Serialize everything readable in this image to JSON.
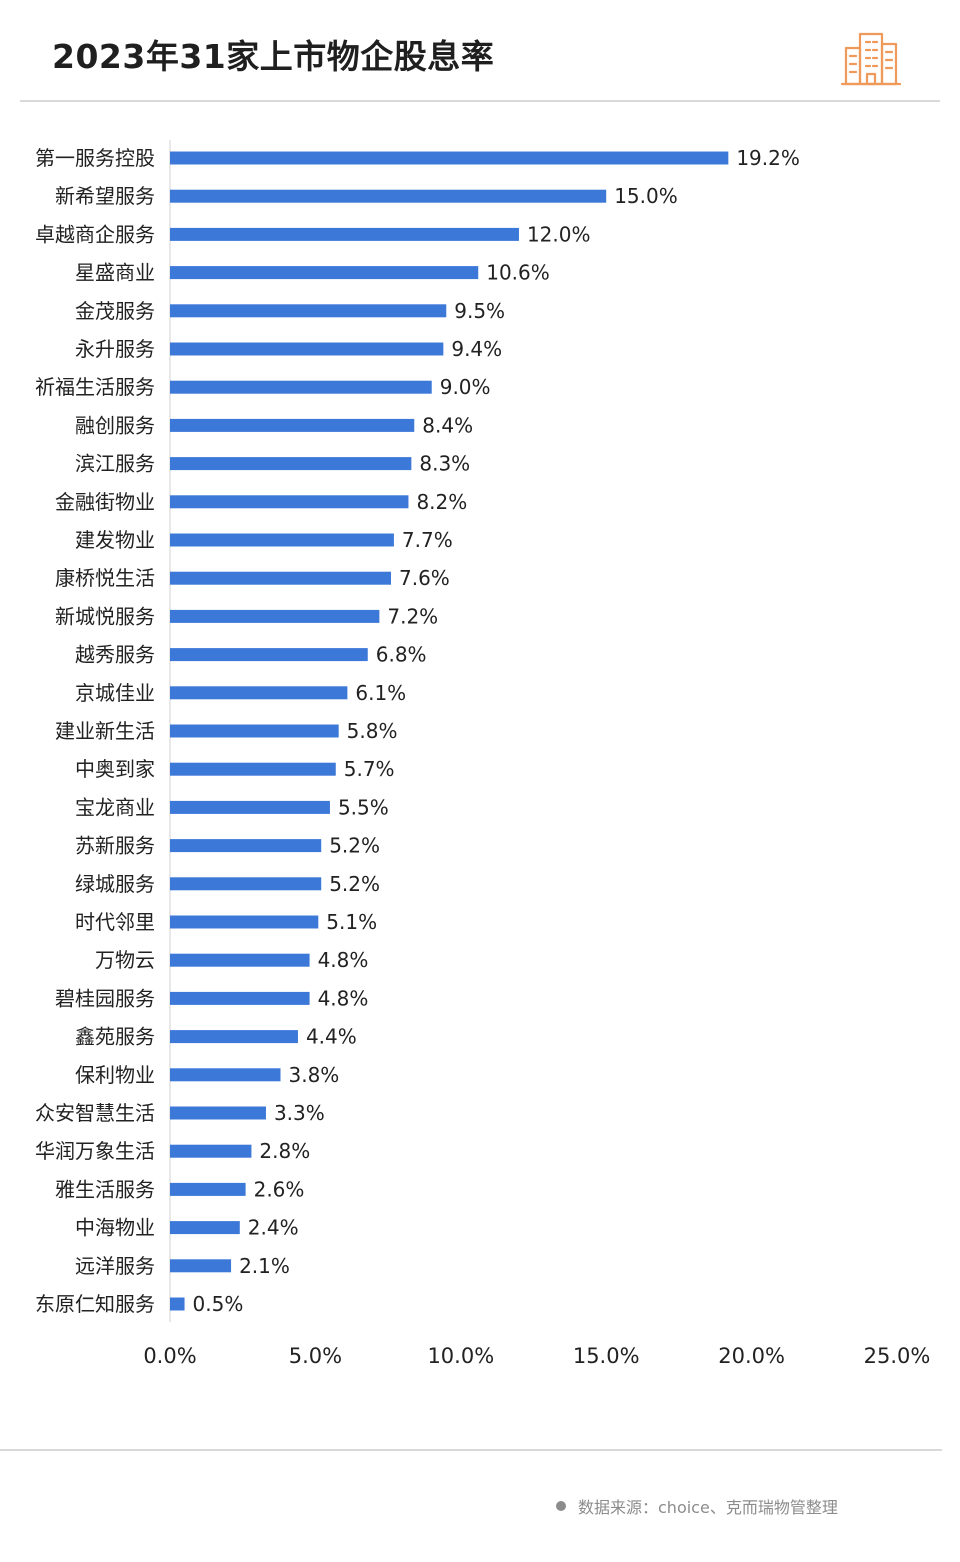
{
  "header": {
    "title": "2023年31家上市物企股息率",
    "logo_icon": "building-logo-icon"
  },
  "colors": {
    "bar": "#3c78d8",
    "accent": "#ef9a5a",
    "text": "#222222",
    "divider": "#d9d9d9"
  },
  "footer": {
    "source": "数据来源：choice、克而瑞物管整理"
  },
  "chart_data": {
    "type": "bar",
    "orientation": "horizontal",
    "title": "2023年31家上市物企股息率",
    "xlabel": "",
    "ylabel": "",
    "xlim": [
      0,
      25
    ],
    "grid": false,
    "value_suffix": "%",
    "categories": [
      "第一服务控股",
      "新希望服务",
      "卓越商企服务",
      "星盛商业",
      "金茂服务",
      "永升服务",
      "祈福生活服务",
      "融创服务",
      "滨江服务",
      "金融街物业",
      "建发物业",
      "康桥悦生活",
      "新城悦服务",
      "越秀服务",
      "京城佳业",
      "建业新生活",
      "中奥到家",
      "宝龙商业",
      "苏新服务",
      "绿城服务",
      "时代邻里",
      "万物云",
      "碧桂园服务",
      "鑫苑服务",
      "保利物业",
      "众安智慧生活",
      "华润万象生活",
      "雅生活服务",
      "中海物业",
      "远洋服务",
      "东原仁知服务"
    ],
    "values": [
      19.2,
      15.0,
      12.0,
      10.6,
      9.5,
      9.4,
      9.0,
      8.4,
      8.3,
      8.2,
      7.7,
      7.6,
      7.2,
      6.8,
      6.1,
      5.8,
      5.7,
      5.5,
      5.2,
      5.2,
      5.1,
      4.8,
      4.8,
      4.4,
      3.8,
      3.3,
      2.8,
      2.6,
      2.4,
      2.1,
      0.5
    ],
    "data_labels": [
      "19.2%",
      "15.0%",
      "12.0%",
      "10.6%",
      "9.5%",
      "9.4%",
      "9.0%",
      "8.4%",
      "8.3%",
      "8.2%",
      "7.7%",
      "7.6%",
      "7.2%",
      "6.8%",
      "6.1%",
      "5.8%",
      "5.7%",
      "5.5%",
      "5.2%",
      "5.2%",
      "5.1%",
      "4.8%",
      "4.8%",
      "4.4%",
      "3.8%",
      "3.3%",
      "2.8%",
      "2.6%",
      "2.4%",
      "2.1%",
      "0.5%"
    ],
    "x_ticks": [
      0,
      5,
      10,
      15,
      20,
      25
    ],
    "x_tick_labels": [
      "0.0%",
      "5.0%",
      "10.0%",
      "15.0%",
      "20.0%",
      "25.0%"
    ]
  }
}
